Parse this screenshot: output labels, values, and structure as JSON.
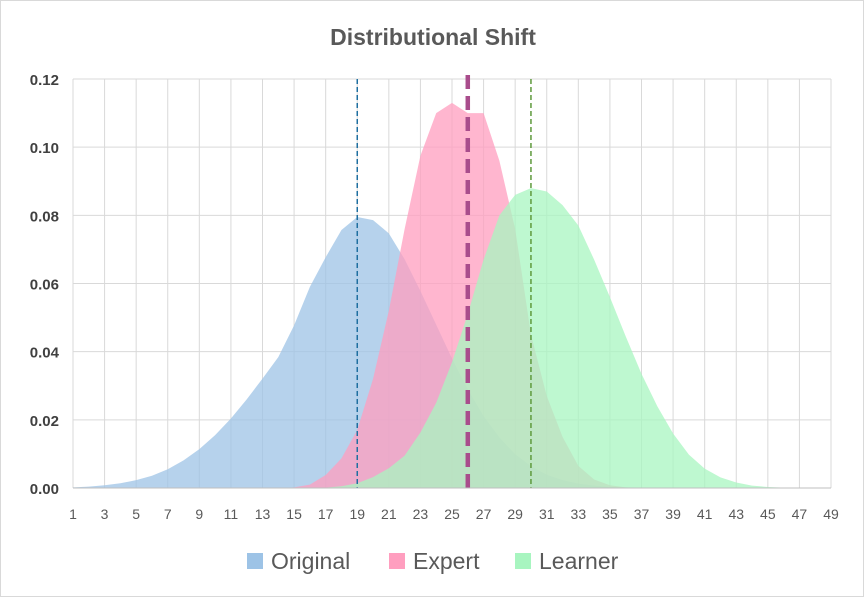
{
  "chart_data": {
    "type": "area",
    "title": "Distributional Shift",
    "xlabel": "",
    "ylabel": "",
    "x": [
      1,
      2,
      3,
      4,
      5,
      6,
      7,
      8,
      9,
      10,
      11,
      12,
      13,
      14,
      15,
      16,
      17,
      18,
      19,
      20,
      21,
      22,
      23,
      24,
      25,
      26,
      27,
      28,
      29,
      30,
      31,
      32,
      33,
      34,
      35,
      36,
      37,
      38,
      39,
      40,
      41,
      42,
      43,
      44,
      45,
      46,
      47,
      48,
      49
    ],
    "x_tick_labels": [
      "1",
      "3",
      "5",
      "7",
      "9",
      "11",
      "13",
      "15",
      "17",
      "19",
      "21",
      "23",
      "25",
      "27",
      "29",
      "31",
      "33",
      "35",
      "37",
      "39",
      "41",
      "43",
      "45",
      "47",
      "49"
    ],
    "y_tick_labels": [
      "0.00",
      "0.02",
      "0.04",
      "0.06",
      "0.08",
      "0.10",
      "0.12"
    ],
    "ylim": [
      0,
      0.12
    ],
    "grid": true,
    "legend_position": "bottom",
    "series": [
      {
        "name": "Original",
        "color": "#9dc3e6",
        "values": [
          0.0002,
          0.0004,
          0.0008,
          0.0014,
          0.0023,
          0.0036,
          0.0055,
          0.0081,
          0.0114,
          0.0155,
          0.0204,
          0.026,
          0.0321,
          0.0384,
          0.0477,
          0.059,
          0.0677,
          0.0757,
          0.0795,
          0.0786,
          0.0747,
          0.0671,
          0.0578,
          0.0479,
          0.038,
          0.0289,
          0.0211,
          0.0148,
          0.0099,
          0.0064,
          0.0039,
          0.0023,
          0.0013,
          0.0007,
          0.0003,
          0.0002,
          0.0001,
          0,
          0,
          0,
          0,
          0,
          0,
          0,
          0,
          0,
          0,
          0,
          0
        ]
      },
      {
        "name": "Expert",
        "color": "#ff9ebf",
        "values": [
          0,
          0,
          0,
          0,
          0,
          0,
          0,
          0,
          0,
          0,
          0,
          0,
          0,
          0,
          0.0002,
          0.001,
          0.0038,
          0.0087,
          0.017,
          0.032,
          0.052,
          0.076,
          0.0975,
          0.11,
          0.113,
          0.11,
          0.11,
          0.096,
          0.076,
          0.045,
          0.027,
          0.015,
          0.0065,
          0.0025,
          0.0008,
          0.0002,
          0,
          0,
          0,
          0,
          0,
          0,
          0,
          0,
          0,
          0,
          0,
          0,
          0
        ]
      },
      {
        "name": "Learner",
        "color": "#a8f5c0",
        "values": [
          0,
          0,
          0,
          0,
          0,
          0,
          0,
          0,
          0,
          0,
          0,
          0,
          0,
          0,
          0,
          0,
          0.0001,
          0.0005,
          0.0014,
          0.0032,
          0.0058,
          0.0095,
          0.0163,
          0.025,
          0.0369,
          0.0511,
          0.067,
          0.08,
          0.086,
          0.088,
          0.087,
          0.083,
          0.077,
          0.067,
          0.056,
          0.0445,
          0.0335,
          0.024,
          0.016,
          0.0098,
          0.0057,
          0.0031,
          0.0016,
          0.0007,
          0.0003,
          0.0001,
          0,
          0,
          0
        ]
      }
    ],
    "reference_lines": [
      {
        "series": "Original",
        "x": 19,
        "color": "#1f6fa0",
        "style": "dashed-thin"
      },
      {
        "series": "Expert",
        "x": 26,
        "color": "#a94d8c",
        "style": "dashed-thick"
      },
      {
        "series": "Learner",
        "x": 30,
        "color": "#5e9a3c",
        "style": "dashed-thin"
      }
    ]
  }
}
